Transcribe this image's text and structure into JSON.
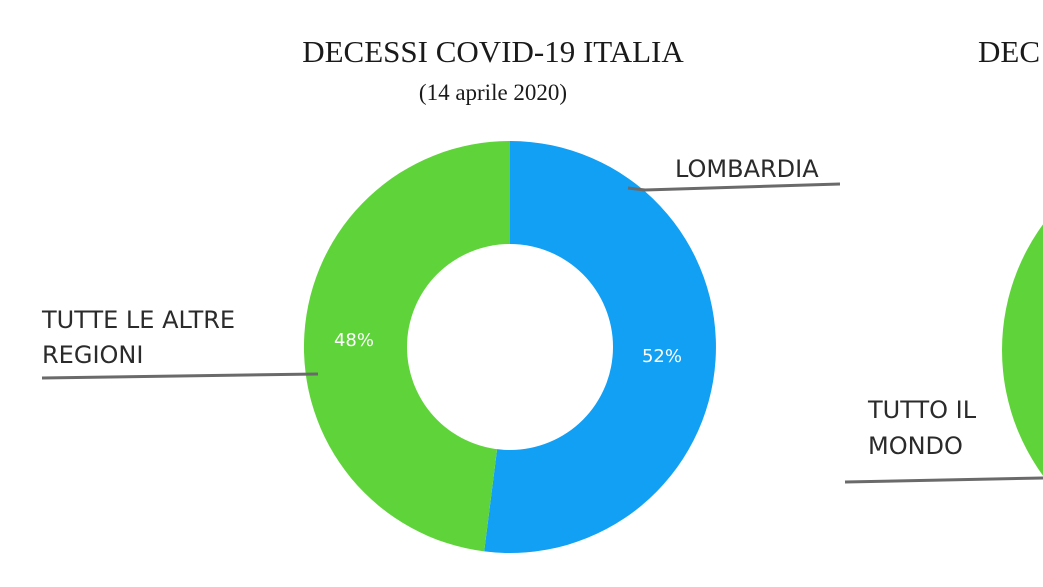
{
  "chart_data": [
    {
      "type": "pie",
      "title": "DECESSI COVID-19 ITALIA",
      "subtitle": "(14 aprile 2020)",
      "slices": [
        {
          "label": "LOMBARDIA",
          "value": 52,
          "value_label": "52%",
          "color": "#12a0f5"
        },
        {
          "label_lines": [
            "TUTTE LE ALTRE",
            "REGIONI"
          ],
          "value": 48,
          "value_label": "48%",
          "color": "#5fd43a"
        }
      ]
    },
    {
      "type": "pie",
      "title_partial": "DEC",
      "slices": [
        {
          "label_lines": [
            "TUTTO IL",
            "MONDO"
          ],
          "color": "#5fd43a"
        }
      ]
    }
  ]
}
